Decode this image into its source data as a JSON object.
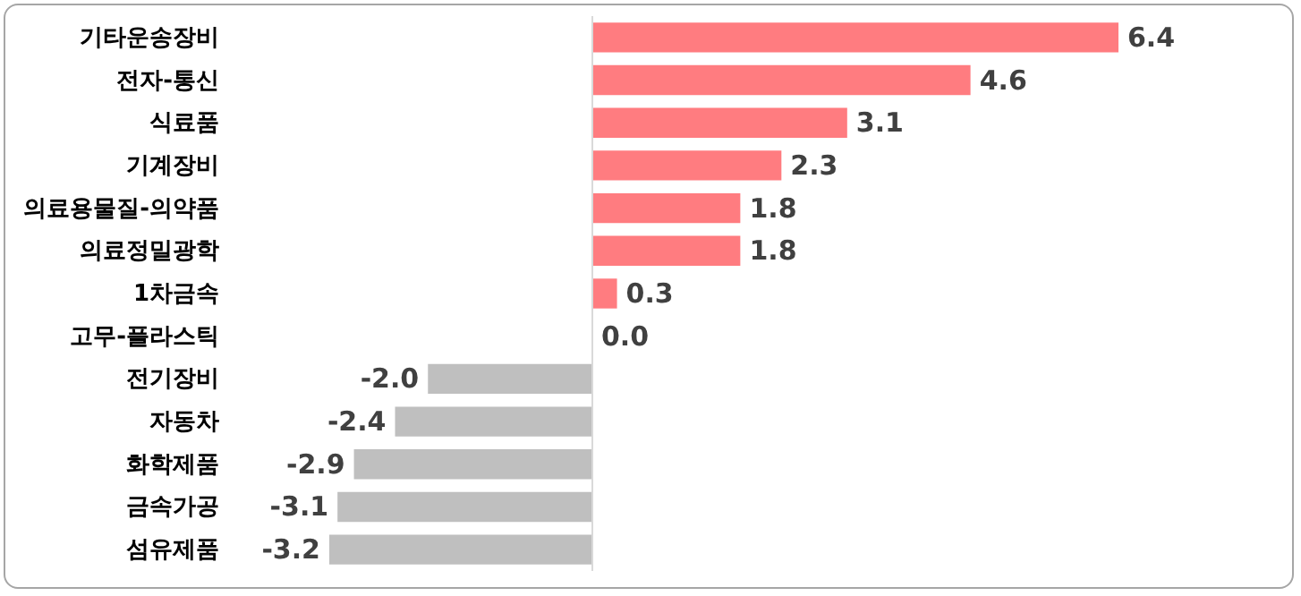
{
  "chart_data": {
    "type": "bar",
    "orientation": "horizontal",
    "categories": [
      "기타운송장비",
      "전자-통신",
      "식료품",
      "기계장비",
      "의료용물질-의약품",
      "의료정밀광학",
      "1차금속",
      "고무-플라스틱",
      "전기장비",
      "자동차",
      "화학제품",
      "금속가공",
      "섬유제품"
    ],
    "values": [
      6.4,
      4.6,
      3.1,
      2.3,
      1.8,
      1.8,
      0.3,
      0.0,
      -2.0,
      -2.4,
      -2.9,
      -3.1,
      -3.2
    ],
    "colors": [
      "#ff7c80",
      "#ff7c80",
      "#ff7c80",
      "#ff7c80",
      "#ff7c80",
      "#ff7c80",
      "#ff7c80",
      "#ff7c80",
      "#bfbfbf",
      "#bfbfbf",
      "#bfbfbf",
      "#bfbfbf",
      "#bfbfbf"
    ],
    "value_labels": [
      "6.4",
      "4.6",
      "3.1",
      "2.3",
      "1.8",
      "1.8",
      "0.3",
      "0.0",
      "-2.0",
      "-2.4",
      "-2.9",
      "-3.1",
      "-3.2"
    ],
    "ref_lines": [
      {
        "axis": "x",
        "value": 0,
        "color": "#d9d9d9"
      }
    ]
  }
}
